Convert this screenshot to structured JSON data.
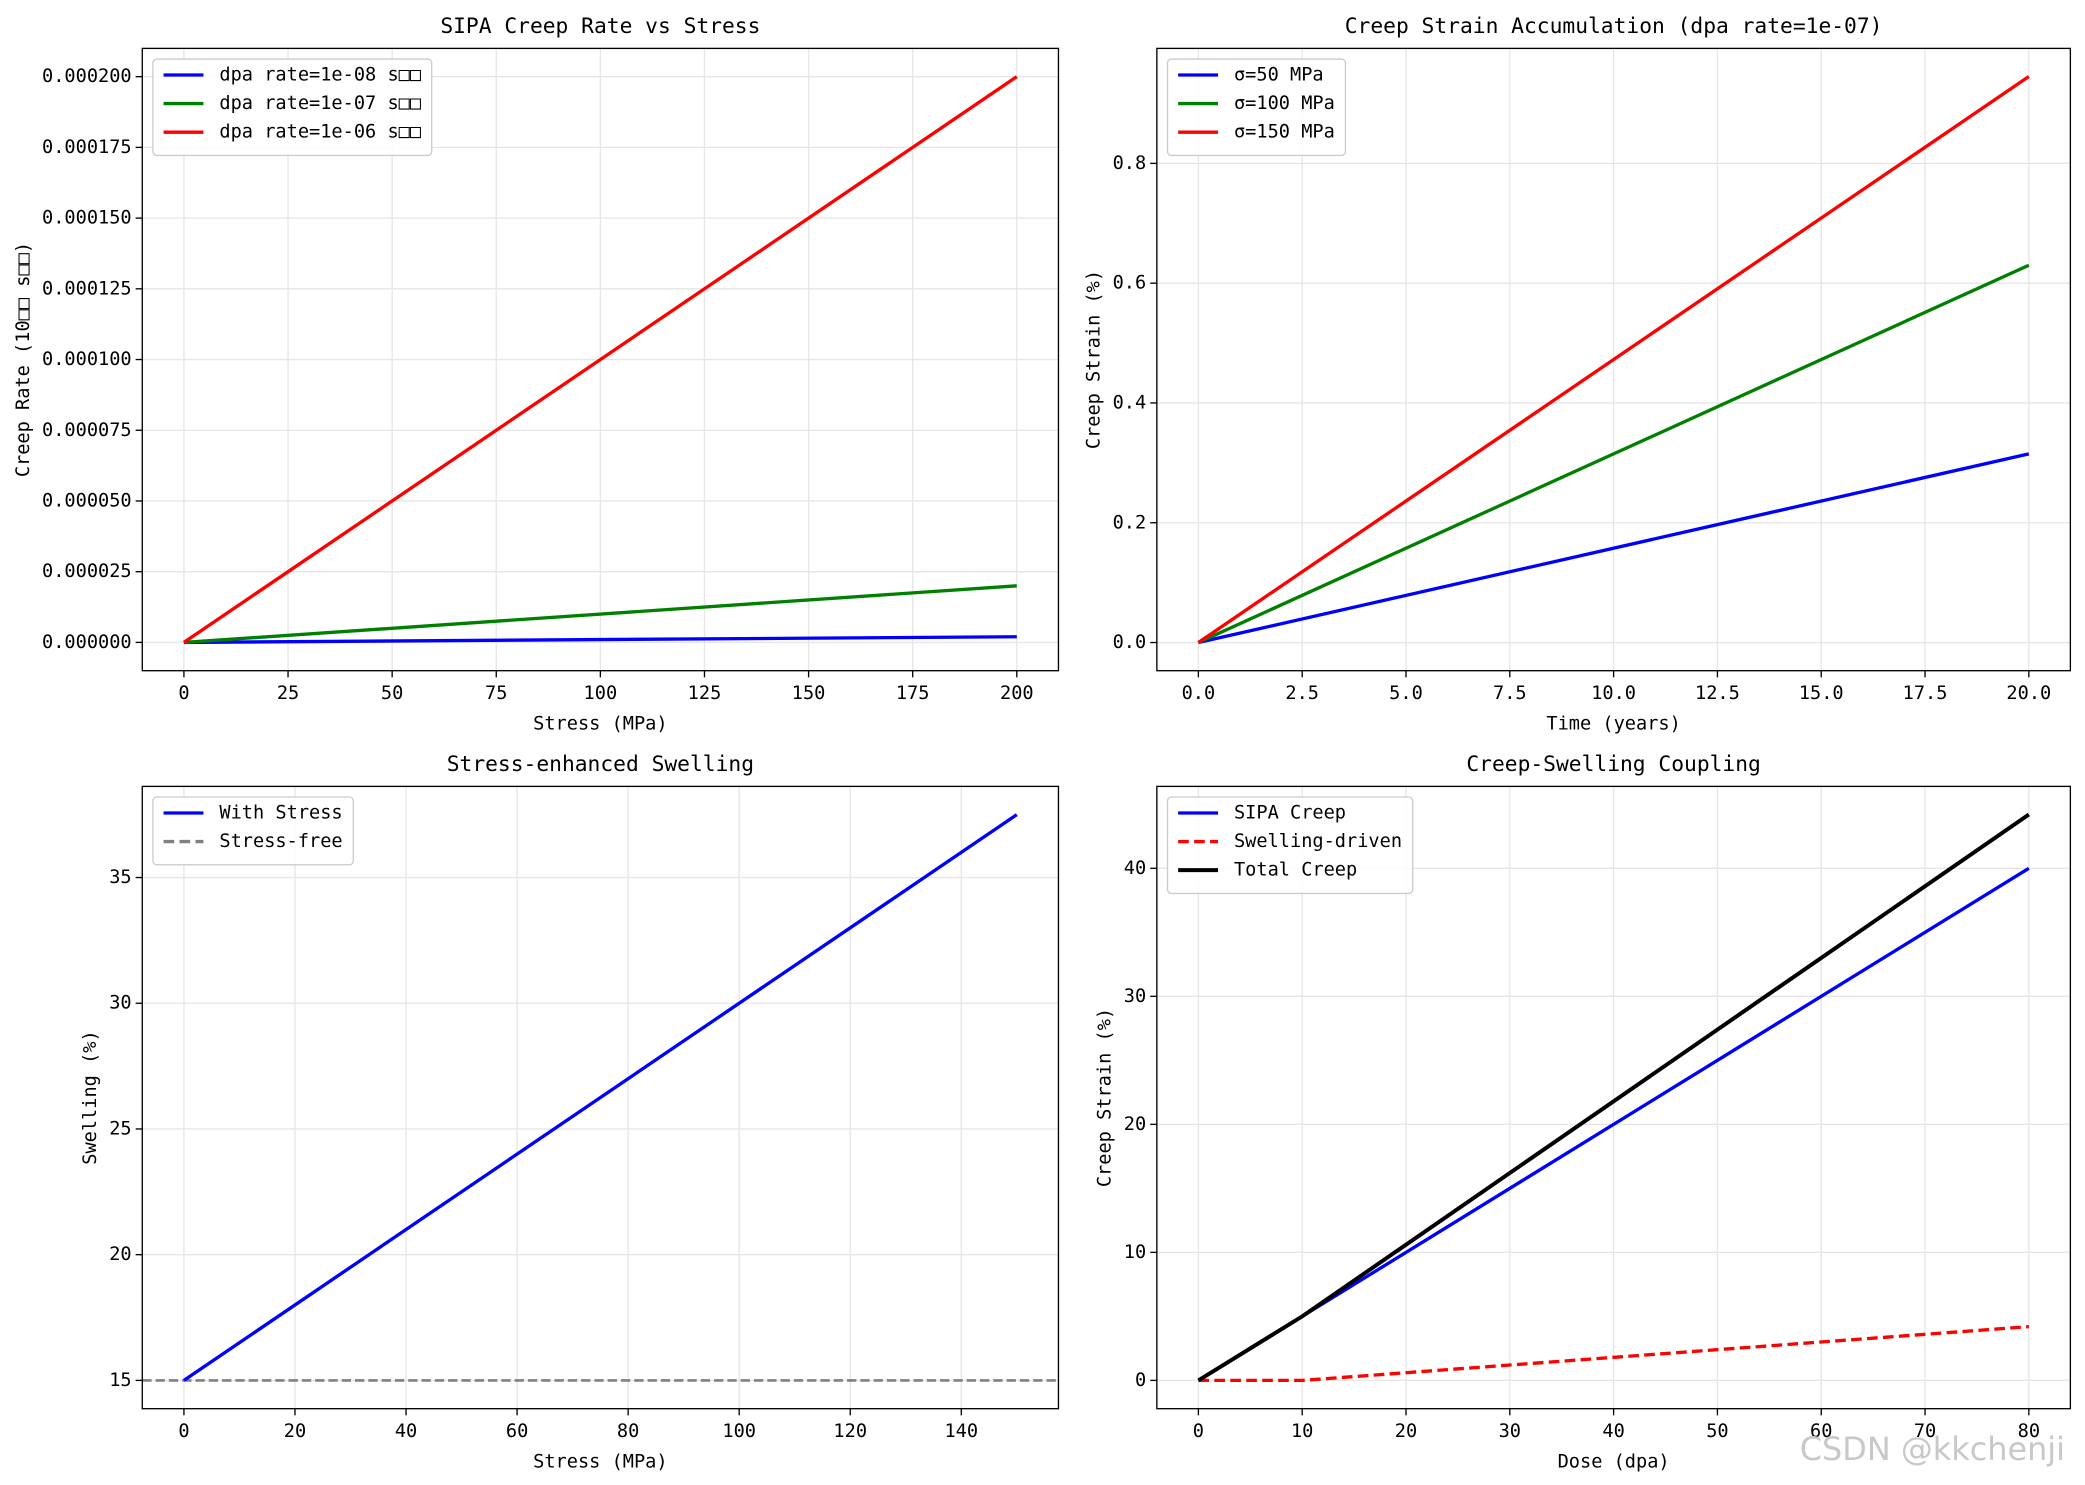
{
  "chart_data": [
    {
      "type": "line",
      "title": "SIPA Creep Rate vs Stress",
      "xlabel": "Stress (MPa)",
      "ylabel": "Creep Rate (10□□ s□□)",
      "x": [
        0,
        200
      ],
      "xlim": [
        -10,
        210
      ],
      "xticks": [
        0,
        25,
        50,
        75,
        100,
        125,
        150,
        175,
        200
      ],
      "ylim": [
        -1e-05,
        0.00021
      ],
      "yticks": [
        {
          "value": 0,
          "label": "0.000000"
        },
        {
          "value": 2.5e-05,
          "label": "0.000025"
        },
        {
          "value": 5e-05,
          "label": "0.000050"
        },
        {
          "value": 7.5e-05,
          "label": "0.000075"
        },
        {
          "value": 0.0001,
          "label": "0.000100"
        },
        {
          "value": 0.000125,
          "label": "0.000125"
        },
        {
          "value": 0.00015,
          "label": "0.000150"
        },
        {
          "value": 0.000175,
          "label": "0.000175"
        },
        {
          "value": 0.0002,
          "label": "0.000200"
        }
      ],
      "grid": true,
      "legend": "upper left",
      "series": [
        {
          "name": "dpa rate=1e-08 s□□",
          "color": "#0000ff",
          "values": [
            0,
            2e-06
          ]
        },
        {
          "name": "dpa rate=1e-07 s□□",
          "color": "#008000",
          "values": [
            0,
            2e-05
          ]
        },
        {
          "name": "dpa rate=1e-06 s□□",
          "color": "#ff0000",
          "values": [
            0,
            0.0002
          ]
        }
      ]
    },
    {
      "type": "line",
      "title": "Creep Strain Accumulation (dpa rate=1e-07)",
      "xlabel": "Time (years)",
      "ylabel": "Creep Strain (%)",
      "x": [
        0,
        20
      ],
      "xlim": [
        -1,
        21
      ],
      "xticks": [
        {
          "value": 0,
          "label": "0.0"
        },
        2.5,
        {
          "value": 5,
          "label": "5.0"
        },
        7.5,
        {
          "value": 10,
          "label": "10.0"
        },
        12.5,
        {
          "value": 15,
          "label": "15.0"
        },
        17.5,
        {
          "value": 20,
          "label": "20.0"
        }
      ],
      "ylim": [
        -0.047,
        0.992
      ],
      "yticks": [
        {
          "value": 0,
          "label": "0.0"
        },
        0.2,
        0.4,
        0.6,
        0.8
      ],
      "grid": true,
      "legend": "upper left",
      "series": [
        {
          "name": "σ=50 MPa",
          "color": "#0000ff",
          "values": [
            0,
            0.315
          ]
        },
        {
          "name": "σ=100 MPa",
          "color": "#008000",
          "values": [
            0,
            0.63
          ]
        },
        {
          "name": "σ=150 MPa",
          "color": "#ff0000",
          "values": [
            0,
            0.945
          ]
        }
      ]
    },
    {
      "type": "line",
      "title": "Stress-enhanced Swelling",
      "xlabel": "Stress (MPa)",
      "ylabel": "Swelling (%)",
      "x": [
        0,
        150
      ],
      "xlim": [
        -7.5,
        157.5
      ],
      "xticks": [
        0,
        20,
        40,
        60,
        80,
        100,
        120,
        140
      ],
      "ylim": [
        13.875,
        38.625
      ],
      "yticks": [
        15,
        20,
        25,
        30,
        35
      ],
      "grid": true,
      "legend": "upper left",
      "series": [
        {
          "name": "With Stress",
          "color": "#0000ff",
          "values": [
            15,
            37.5
          ]
        }
      ],
      "hlines": [
        {
          "name": "Stress-free",
          "color": "#808080",
          "linestyle": "dashed",
          "value": 15
        }
      ]
    },
    {
      "type": "line",
      "title": "Creep-Swelling Coupling",
      "xlabel": "Dose (dpa)",
      "ylabel": "Creep Strain (%)",
      "x": [
        0,
        10,
        80
      ],
      "xlim": [
        -4,
        84
      ],
      "xticks": [
        0,
        10,
        20,
        30,
        40,
        50,
        60,
        70,
        80
      ],
      "ylim": [
        -2.21,
        46.4
      ],
      "yticks": [
        0,
        10,
        20,
        30,
        40
      ],
      "grid": true,
      "legend": "upper left",
      "series": [
        {
          "name": "SIPA Creep",
          "color": "#0000ff",
          "values": [
            0,
            5,
            40
          ]
        },
        {
          "name": "Swelling-driven",
          "color": "#ff0000",
          "linestyle": "dashed",
          "values": [
            0,
            0,
            4.2
          ]
        },
        {
          "name": "Total Creep",
          "color": "#000000",
          "linewidth": 3,
          "values": [
            0,
            5,
            44.2
          ]
        }
      ]
    }
  ],
  "watermark": "CSDN @kkchenji"
}
